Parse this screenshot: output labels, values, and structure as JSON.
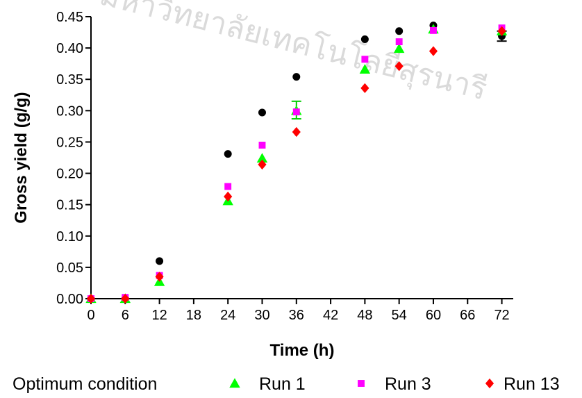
{
  "chart_data": {
    "type": "scatter",
    "title": "",
    "xlabel": "Time (h)",
    "ylabel": "Gross yield (g/g)",
    "xlim": [
      0,
      74
    ],
    "ylim": [
      0,
      0.45
    ],
    "xticks": [
      0,
      6,
      12,
      18,
      24,
      30,
      36,
      42,
      48,
      54,
      60,
      66,
      72
    ],
    "yticks": [
      "0.00",
      "0.05",
      "0.10",
      "0.15",
      "0.20",
      "0.25",
      "0.30",
      "0.35",
      "0.40",
      "0.45"
    ],
    "grid": false,
    "legend_position": "bottom",
    "series": [
      {
        "name": "Optimum condition",
        "marker": "circle",
        "color": "#000000",
        "x": [
          0,
          6,
          12,
          24,
          30,
          36,
          48,
          54,
          60,
          72
        ],
        "y": [
          0.0,
          0.0,
          0.06,
          0.231,
          0.297,
          0.354,
          0.414,
          0.427,
          0.436,
          0.419
        ]
      },
      {
        "name": "Run 1",
        "marker": "triangle",
        "color": "#00ff00",
        "x": [
          0,
          6,
          12,
          24,
          30,
          36,
          48,
          54,
          60,
          72
        ],
        "y": [
          0.0,
          0.0,
          0.027,
          0.156,
          0.224,
          0.3,
          0.366,
          0.399,
          0.43,
          0.427
        ]
      },
      {
        "name": "Run 3",
        "marker": "square",
        "color": "#ff00ff",
        "x": [
          0,
          6,
          12,
          24,
          30,
          36,
          48,
          54,
          60,
          72
        ],
        "y": [
          0.0,
          0.002,
          0.037,
          0.179,
          0.245,
          0.298,
          0.382,
          0.41,
          0.428,
          0.432
        ]
      },
      {
        "name": "Run 13",
        "marker": "diamond",
        "color": "#ff0000",
        "x": [
          0,
          6,
          12,
          24,
          30,
          36,
          48,
          54,
          60,
          72
        ],
        "y": [
          0.0,
          0.0,
          0.035,
          0.163,
          0.214,
          0.266,
          0.336,
          0.371,
          0.395,
          0.427
        ]
      }
    ]
  }
}
